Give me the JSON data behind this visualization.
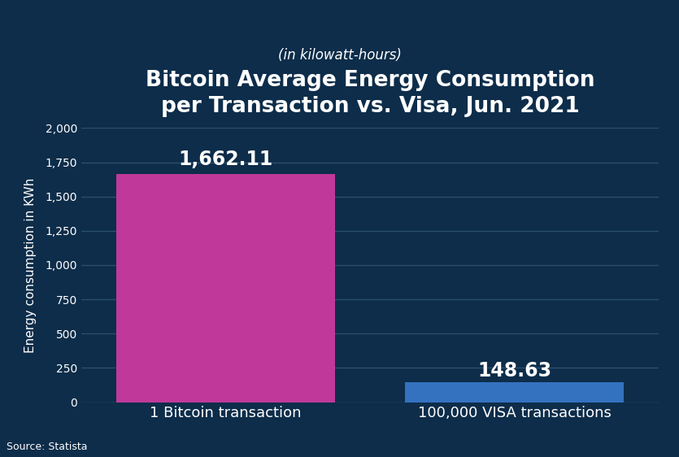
{
  "title_line1": "Bitcoin Average Energy Consumption\nper Transaction vs. Visa, Jun. 2021",
  "subtitle": "(in kilowatt-hours)",
  "categories": [
    "1 Bitcoin transaction",
    "100,000 VISA transactions"
  ],
  "values": [
    1662.11,
    148.63
  ],
  "value_labels": [
    "1,662.11",
    "148.63"
  ],
  "bar_colors": [
    "#c0399a",
    "#3472c0"
  ],
  "ylabel": "Energy consumption in KWh",
  "ylim": [
    0,
    2000
  ],
  "yticks": [
    0,
    250,
    500,
    750,
    1000,
    1250,
    1500,
    1750,
    2000
  ],
  "ytick_labels": [
    "0",
    "250",
    "500",
    "750",
    "1,000",
    "1,250",
    "1,500",
    "1,750",
    "2,000"
  ],
  "background_color": "#0d2d4a",
  "text_color": "#ffffff",
  "grid_color": "#2a4f6a",
  "source_text": "Source: Statista",
  "title_fontsize": 19,
  "subtitle_fontsize": 12,
  "label_fontsize": 13,
  "value_fontsize": 17,
  "ylabel_fontsize": 11,
  "tick_fontsize": 10,
  "source_fontsize": 9,
  "bar_width": 0.38,
  "x_positions": [
    0.25,
    0.75
  ]
}
